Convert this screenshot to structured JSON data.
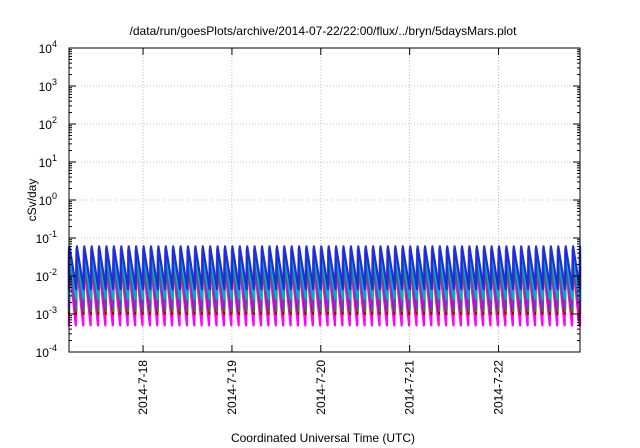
{
  "chart_data": {
    "type": "line",
    "title": "/data/run/goesPlots/archive/2014-07-22/22:00/flux/../bryn/5daysMars.plot",
    "xlabel": "Coordinated Universal Time (UTC)",
    "ylabel": "cSv/day",
    "y_scale": "log",
    "ylim": [
      0.0001,
      10000
    ],
    "y_ticks": [
      {
        "value": 0.0001,
        "base": "10",
        "exp": "-4"
      },
      {
        "value": 0.001,
        "base": "10",
        "exp": "-3"
      },
      {
        "value": 0.01,
        "base": "10",
        "exp": "-2"
      },
      {
        "value": 0.1,
        "base": "10",
        "exp": "-1"
      },
      {
        "value": 1,
        "base": "10",
        "exp": "0"
      },
      {
        "value": 10,
        "base": "10",
        "exp": "1"
      },
      {
        "value": 100,
        "base": "10",
        "exp": "2"
      },
      {
        "value": 1000,
        "base": "10",
        "exp": "3"
      },
      {
        "value": 10000,
        "base": "10",
        "exp": "4"
      }
    ],
    "xlim": [
      "2014-07-17 04:00",
      "2014-07-22 22:00"
    ],
    "x_ticks": [
      "2014-7-18",
      "2014-7-19",
      "2014-7-20",
      "2014-7-21",
      "2014-7-22"
    ],
    "grid": true,
    "pattern": "sawtooth, ~2 h period",
    "series": [
      {
        "color": "#1f2fd8",
        "peak": 0.06,
        "trough": 0.0045
      },
      {
        "color": "#00b0c0",
        "peak": 0.045,
        "trough": 0.0025
      },
      {
        "color": "#8a2be2",
        "peak": 0.05,
        "trough": 0.0015
      },
      {
        "color": "#228b22",
        "peak": 0.02,
        "trough": 0.0012
      },
      {
        "color": "#b00000",
        "peak": 0.035,
        "trough": 0.001
      },
      {
        "color": "#ff00ff",
        "peak": 0.025,
        "trough": 0.0005
      }
    ]
  }
}
